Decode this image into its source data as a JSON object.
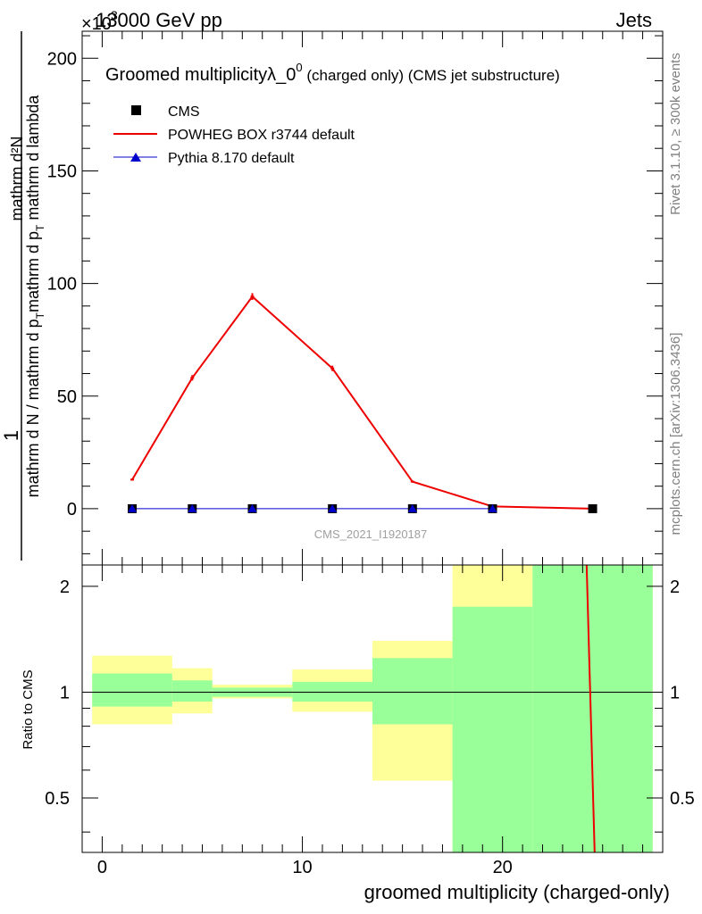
{
  "header": {
    "left": "13000 GeV pp",
    "right": "Jets",
    "exponent_prefix": "×10",
    "exponent_value": "3"
  },
  "chart_data": [
    {
      "type": "line",
      "title": "Groomed multiplicityλ_0",
      "title_superscript": "0",
      "title_suffix": " (charged only) (CMS jet substructure)",
      "ylabel_numerator": "1",
      "ylabel_fraction_top": "mathrm d²N",
      "ylabel_denominator": "mathrm d N / mathrm d p",
      "ylabel_denominator_sub": "T",
      "ylabel_denominator_rest": "mathrm d p",
      "ylabel_denominator_sub2": "T",
      "ylabel_denominator_end": " mathrm d lambda",
      "ylim": [
        -25,
        212
      ],
      "xlim": [
        -1,
        28
      ],
      "yticks_major": [
        0,
        50,
        100,
        150,
        200
      ],
      "yticks_labels": [
        "0",
        "50",
        "100",
        "150",
        "200"
      ],
      "watermark": "CMS_2021_I1920187",
      "legend": [
        {
          "name": "CMS",
          "color": "#000000",
          "marker": "square"
        },
        {
          "name": "POWHEG BOX r3744 default",
          "color": "#ee0000",
          "marker": "line"
        },
        {
          "name": "Pythia 8.170 default",
          "color": "#0000cc",
          "marker": "triangle"
        }
      ],
      "series": [
        {
          "name": "CMS",
          "x": [
            1.5,
            4.5,
            7.5,
            11.5,
            15.5,
            19.5,
            24.5
          ],
          "y": [
            0,
            0,
            0,
            0,
            0,
            0,
            0
          ]
        },
        {
          "name": "POWHEG BOX r3744 default",
          "x": [
            1.5,
            4.5,
            7.5,
            11.5,
            15.5,
            19.5,
            24.5
          ],
          "y": [
            12.9,
            58.1,
            94.2,
            62.3,
            12.0,
            1.0,
            0.02
          ],
          "err": [
            0.4,
            1.2,
            1.5,
            1.2,
            0.4,
            0.1,
            0.01
          ]
        },
        {
          "name": "Pythia 8.170 default",
          "x": [
            1.5,
            4.5,
            7.5,
            11.5,
            15.5,
            19.5
          ],
          "y": [
            0,
            0,
            0,
            0,
            0,
            0
          ]
        }
      ]
    },
    {
      "type": "area",
      "ylabel": "Ratio to CMS",
      "xlabel": "groomed multiplicity (charged-only)",
      "ylim": [
        0.35,
        2.3
      ],
      "log_y": true,
      "xticks_labels": [
        "0",
        "10",
        "20"
      ],
      "xticks_values": [
        0,
        10,
        20
      ],
      "yticks_labels": [
        "0.5",
        "1",
        "2"
      ],
      "yticks_values": [
        0.5,
        1,
        2
      ],
      "bands": [
        {
          "x0": -0.5,
          "x1": 3.5,
          "y_low": 0.81,
          "y_high": 1.27,
          "inner_low": 0.91,
          "inner_high": 1.13
        },
        {
          "x0": 3.5,
          "x1": 5.5,
          "y_low": 0.87,
          "y_high": 1.17,
          "inner_low": 0.94,
          "inner_high": 1.08
        },
        {
          "x0": 5.5,
          "x1": 9.5,
          "y_low": 0.96,
          "y_high": 1.05,
          "inner_low": 0.97,
          "inner_high": 1.03
        },
        {
          "x0": 9.5,
          "x1": 13.5,
          "y_low": 0.88,
          "y_high": 1.16,
          "inner_low": 0.94,
          "inner_high": 1.07
        },
        {
          "x0": 13.5,
          "x1": 17.5,
          "y_low": 0.56,
          "y_high": 1.4,
          "inner_low": 0.81,
          "inner_high": 1.25
        },
        {
          "x0": 17.5,
          "x1": 21.5,
          "y_low": 0.35,
          "y_high": 2.3,
          "inner_low": 0.35,
          "inner_high": 1.75
        },
        {
          "x0": 21.5,
          "x1": 27.5,
          "y_low": 0.35,
          "y_high": 2.3,
          "inner_low": 0.35,
          "inner_high": 2.3
        }
      ],
      "ratio_line": {
        "name": "POWHEG BOX r3744 default",
        "x": [
          24.2,
          24.6
        ],
        "y": [
          2.3,
          0.35
        ]
      }
    }
  ],
  "side_text": {
    "rivet": "Rivet 3.1.10, ≥ 300k events",
    "mcplots": "mcplots.cern.ch [arXiv:1306.3436]"
  }
}
